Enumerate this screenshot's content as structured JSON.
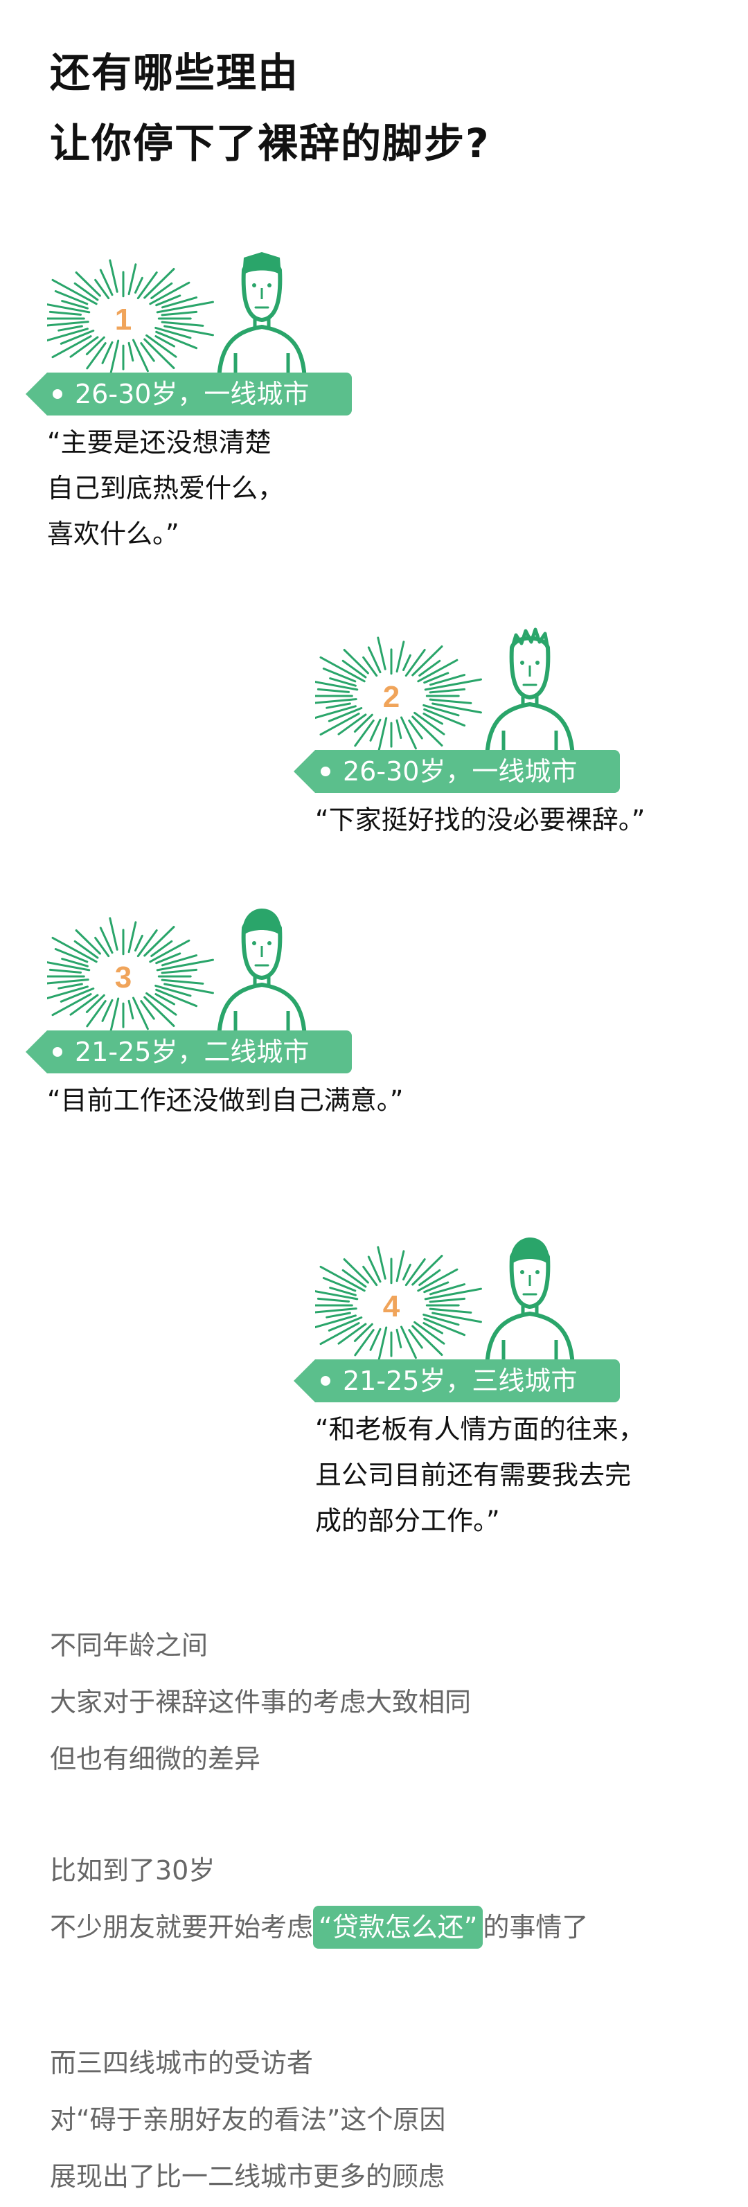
{
  "title": {
    "line1": "还有哪些理由",
    "line2": "让你停下了裸辞的脚步?"
  },
  "cards": [
    {
      "number": "1",
      "tag": "26-30岁，一线城市",
      "quote": [
        "“主要是还没想清楚",
        "自己到底热爱什么，",
        "喜欢什么。”"
      ]
    },
    {
      "number": "2",
      "tag": "26-30岁，一线城市",
      "quote": [
        "“下家挺好找的没必要裸辞。”"
      ]
    },
    {
      "number": "3",
      "tag": "21-25岁，二线城市",
      "quote": [
        "“目前工作还没做到自己满意。”"
      ]
    },
    {
      "number": "4",
      "tag": "21-25岁，三线城市",
      "quote": [
        "“和老板有人情方面的往来，",
        "且公司目前还有需要我去完",
        "成的部分工作。”"
      ]
    }
  ],
  "paragraph1": [
    "不同年龄之间",
    "大家对于裸辞这件事的考虑大致相同",
    "但也有细微的差异"
  ],
  "paragraph2": {
    "line1": "比如到了30岁",
    "line2_before": "不少朋友就要开始考虑",
    "line2_highlight": "“贷款怎么还”",
    "line2_after": "的事情了"
  },
  "paragraph3": [
    "而三四线城市的受访者",
    "对“碍于亲朋好友的看法”这个原因",
    "展现出了比一二线城市更多的顾虑"
  ],
  "colors": {
    "accent": "#5bbf8c",
    "number": "#f0a45a",
    "illustration": "#2aa56a",
    "text": "#111111",
    "muted": "#666666"
  }
}
